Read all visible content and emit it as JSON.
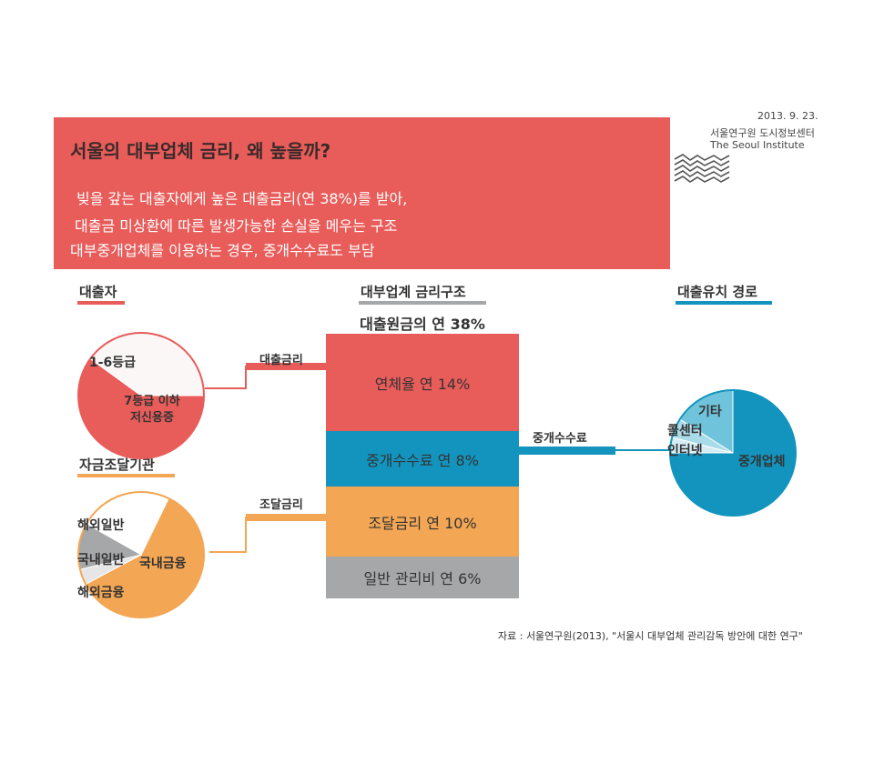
{
  "header": {
    "date": "2013. 9. 23.",
    "institute_ko": "서울연구원 도시정보센터",
    "institute_en": "The Seoul Institute",
    "title": "서울의 대부업체 금리, 왜 높을까?",
    "lines": [
      "빚을 갚는 대출자에게 높은 대출금리(연 38%)를 받아,",
      "대출금 미상환에 따른 발생가능한 손실을 메우는 구조",
      "대부중개업체를 이용하는 경우, 중개수수료도 부담"
    ]
  },
  "colors": {
    "red": "#e85c5a",
    "blue": "#1394be",
    "orange": "#f3a654",
    "gray": "#a6a7a9",
    "lightblue": "#6fc3da"
  },
  "sections": {
    "borrower": "대출자",
    "funding": "자금조달기관",
    "structure": "대부업계 금리구조",
    "channel": "대출유치 경로"
  },
  "connectors": {
    "loan_rate": "대출금리",
    "funding_rate": "조달금리",
    "brokerage_fee": "중개수수료"
  },
  "chart_data": [
    {
      "type": "pie",
      "title": "대출자",
      "labels": [
        "1-6등급",
        "7등급 이하 저신용증"
      ],
      "values": [
        40,
        60
      ]
    },
    {
      "type": "pie",
      "title": "자금조달기관",
      "labels": [
        "국내금융",
        "해외일반",
        "국내일반",
        "해외금융"
      ],
      "values": [
        60,
        24,
        12,
        4
      ]
    },
    {
      "type": "bar",
      "title": "대부업계 금리구조",
      "subtitle": "대출원금의 연 38%",
      "stacked": true,
      "total": 38,
      "segments": [
        {
          "label": "연체율 연 14%",
          "value": 14
        },
        {
          "label": "중개수수료 연 8%",
          "value": 8
        },
        {
          "label": "조달금리 연 10%",
          "value": 10
        },
        {
          "label": "일반 관리비 연 6%",
          "value": 6
        }
      ]
    },
    {
      "type": "pie",
      "title": "대출유치 경로",
      "labels": [
        "중개업체",
        "기타",
        "콜센터",
        "인터넷"
      ],
      "values": [
        75,
        16,
        5,
        4
      ]
    }
  ],
  "source": "자료 : 서울연구원(2013), \"서울시 대부업체 관리감독 방안에 대한 연구\""
}
